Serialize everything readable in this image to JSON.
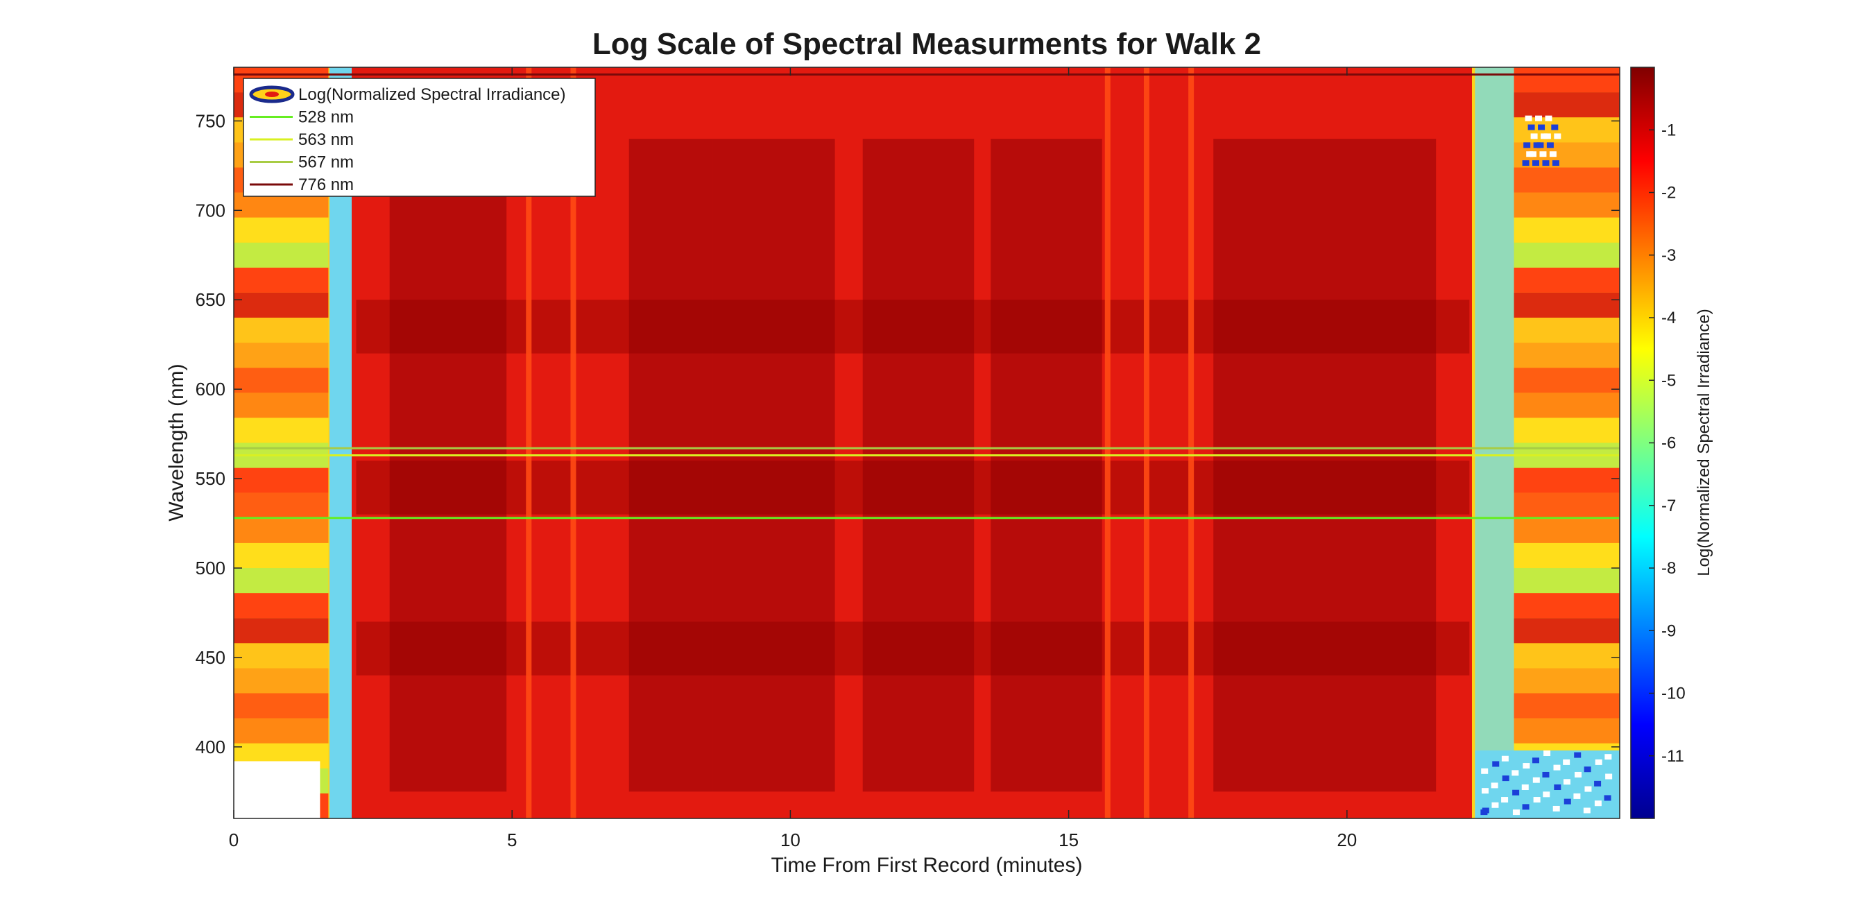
{
  "chart_data": {
    "type": "heatmap",
    "title": "Log Scale of Spectral Measurments for Walk 2",
    "xlabel": "Time From First Record (minutes)",
    "ylabel": "Wavelength (nm)",
    "colorbar_label": "Log(Normalized Spectral Irradiance)",
    "xlim": [
      0,
      24.9
    ],
    "ylim": [
      360,
      780
    ],
    "clim": [
      -12,
      0
    ],
    "x_ticks": [
      0,
      5,
      10,
      15,
      20
    ],
    "y_ticks": [
      400,
      450,
      500,
      550,
      600,
      650,
      700,
      750
    ],
    "colorbar_ticks": [
      -1,
      -2,
      -3,
      -4,
      -5,
      -6,
      -7,
      -8,
      -9,
      -10,
      -11
    ],
    "colormap": "jet",
    "legend_position": "top-left",
    "legend": [
      {
        "label": "Log(Normalized Spectral Irradiance)",
        "kind": "contour",
        "color": "#1a2a8c"
      },
      {
        "label": "528 nm",
        "kind": "line",
        "color": "#66ee22"
      },
      {
        "label": "563 nm",
        "kind": "line",
        "color": "#d9f022"
      },
      {
        "label": "567 nm",
        "kind": "line",
        "color": "#a8cc44"
      },
      {
        "label": "776 nm",
        "kind": "line",
        "color": "#7a0a0a"
      }
    ],
    "reference_lines": [
      {
        "wavelength": 528,
        "color": "#66ee22"
      },
      {
        "wavelength": 563,
        "color": "#d9f022"
      },
      {
        "wavelength": 567,
        "color": "#a8cc44"
      },
      {
        "wavelength": 776,
        "color": "#7a0a0a"
      }
    ],
    "time_segments": [
      {
        "x_start": 0.0,
        "x_end": 1.7,
        "log_value_range": [
          -5,
          -1
        ],
        "description": "low irradiance, banded"
      },
      {
        "x_start": 1.7,
        "x_end": 2.15,
        "log_value_range": [
          -9,
          -5
        ],
        "description": "transition"
      },
      {
        "x_start": 2.15,
        "x_end": 22.3,
        "log_value_range": [
          -1.5,
          -0.3
        ],
        "description": "high irradiance"
      },
      {
        "x_start": 22.3,
        "x_end": 24.9,
        "log_value_range": [
          -9,
          -1
        ],
        "description": "low irradiance, banded"
      }
    ],
    "bright_streaks_minutes": [
      5.3,
      6.1,
      15.7,
      16.4,
      17.2
    ]
  }
}
